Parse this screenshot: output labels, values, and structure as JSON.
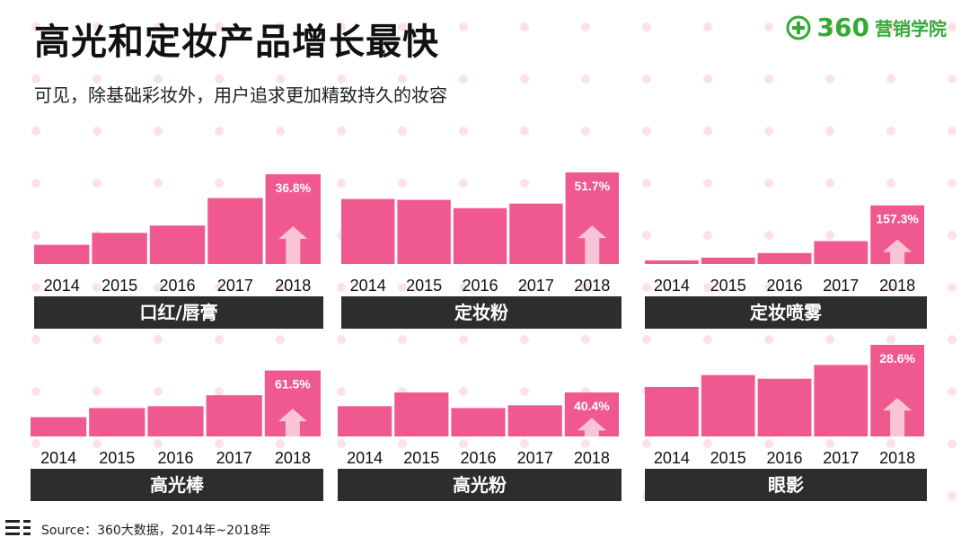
{
  "title": "高光和定妆产品增长最快",
  "subtitle": "可见，除基础彩妆外，用户追求更加精致持久的妆容",
  "logo": {
    "number": "360",
    "text": "营销学院",
    "icon": "plus-circle-icon"
  },
  "source": "Source：360大数据，2014年~2018年",
  "colors": {
    "bar": "#f0598f",
    "arrow": "#f8c4d6",
    "label_bg": "#2d2d2d",
    "brand": "#35a936"
  },
  "chart_data": [
    {
      "type": "bar",
      "title": "口红/唇膏",
      "categories": [
        "2014",
        "2015",
        "2016",
        "2017",
        "2018"
      ],
      "values": [
        21,
        34,
        42,
        72,
        98
      ],
      "annotation": "36.8%"
    },
    {
      "type": "bar",
      "title": "定妆粉",
      "categories": [
        "2014",
        "2015",
        "2016",
        "2017",
        "2018"
      ],
      "values": [
        71,
        70,
        61,
        66,
        100
      ],
      "annotation": "51.7%"
    },
    {
      "type": "bar",
      "title": "定妆喷雾",
      "categories": [
        "2014",
        "2015",
        "2016",
        "2017",
        "2018"
      ],
      "values": [
        4,
        7,
        12,
        25,
        64
      ],
      "annotation": "157.3%"
    },
    {
      "type": "bar",
      "title": "高光棒",
      "categories": [
        "2014",
        "2015",
        "2016",
        "2017",
        "2018"
      ],
      "values": [
        21,
        31,
        33,
        45,
        72
      ],
      "annotation": "61.5%"
    },
    {
      "type": "bar",
      "title": "高光粉",
      "categories": [
        "2014",
        "2015",
        "2016",
        "2017",
        "2018"
      ],
      "values": [
        33,
        48,
        31,
        34,
        48
      ],
      "annotation": "40.4%"
    },
    {
      "type": "bar",
      "title": "眼影",
      "categories": [
        "2014",
        "2015",
        "2016",
        "2017",
        "2018"
      ],
      "values": [
        54,
        67,
        63,
        78,
        100
      ],
      "annotation": "28.6%"
    }
  ]
}
